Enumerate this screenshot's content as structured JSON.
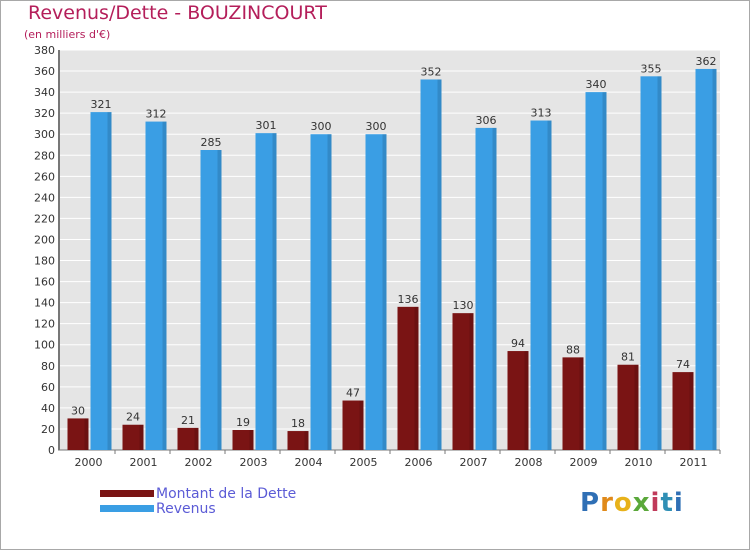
{
  "title": "Revenus/Dette - BOUZINCOURT",
  "subtitle": "(en milliers d'€)",
  "legend": {
    "debt_label": "Montant de la Dette",
    "revenue_label": "Revenus"
  },
  "logo": {
    "letters": [
      "P",
      "r",
      "o",
      "x",
      "i",
      "t",
      "i"
    ],
    "colors": [
      "#2f6fb5",
      "#e08a1a",
      "#e8b21a",
      "#5aa83a",
      "#c03a5a",
      "#2f8fb5",
      "#2f6fb5"
    ]
  },
  "colors": {
    "debt": "#7a1414",
    "revenue": "#3a9ee4",
    "grid": "#ffffff",
    "plot_bg": "#e5e5e5"
  },
  "chart_data": {
    "type": "bar",
    "title": "Revenus/Dette - BOUZINCOURT",
    "ylabel": "(en milliers d'€)",
    "categories": [
      "2000",
      "2001",
      "2002",
      "2003",
      "2004",
      "2005",
      "2006",
      "2007",
      "2008",
      "2009",
      "2010",
      "2011"
    ],
    "series": [
      {
        "name": "Montant de la Dette",
        "values": [
          30,
          24,
          21,
          19,
          18,
          47,
          136,
          130,
          94,
          88,
          81,
          74
        ]
      },
      {
        "name": "Revenus",
        "values": [
          321,
          312,
          285,
          301,
          300,
          300,
          352,
          306,
          313,
          340,
          355,
          362
        ]
      }
    ],
    "ylim": [
      0,
      380
    ],
    "ytick_step": 20,
    "yticks": [
      "0",
      "20",
      "40",
      "60",
      "80",
      "100",
      "120",
      "140",
      "160",
      "180",
      "200",
      "220",
      "240",
      "260",
      "280",
      "300",
      "320",
      "340",
      "360",
      "380"
    ],
    "grid": true
  }
}
